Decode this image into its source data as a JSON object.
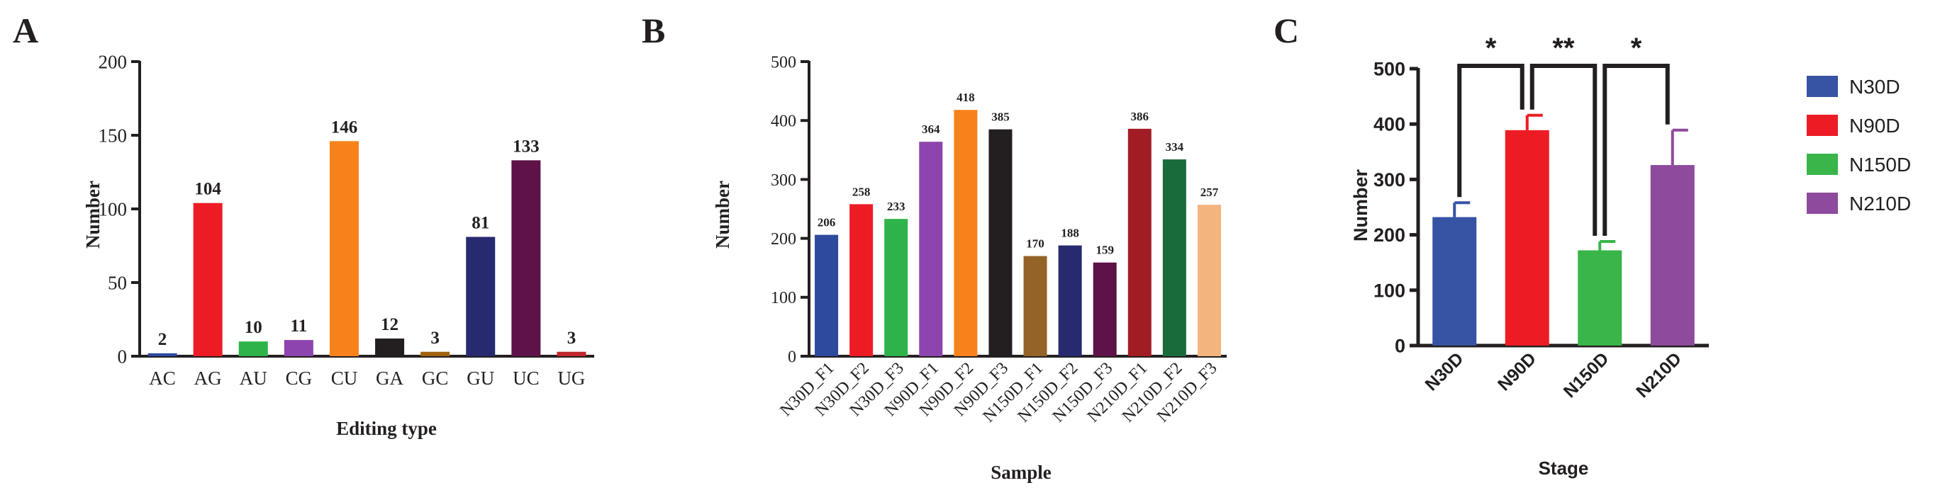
{
  "chart_data": [
    {
      "panel": "A",
      "type": "bar",
      "xlabel": "Editing type",
      "ylabel": "Number",
      "ylim": [
        0,
        200
      ],
      "yticks": [
        "0",
        "50",
        "100",
        "150",
        "200"
      ],
      "categories": [
        "AC",
        "AG",
        "AU",
        "CG",
        "CU",
        "GA",
        "GC",
        "GU",
        "UC",
        "UG"
      ],
      "values": [
        2,
        104,
        10,
        11,
        146,
        12,
        3,
        81,
        133,
        3
      ],
      "data_labels": [
        "2",
        "104",
        "10",
        "11",
        "146",
        "12",
        "3",
        "81",
        "133",
        "3"
      ],
      "colors": [
        "#2E4A9E",
        "#ED1C24",
        "#2DB34A",
        "#8E44AD",
        "#F7821B",
        "#231F20",
        "#A0620E",
        "#272A6E",
        "#5E1248",
        "#C1272D"
      ],
      "grid": false
    },
    {
      "panel": "B",
      "type": "bar",
      "xlabel": "Sample",
      "ylabel": "Number",
      "ylim": [
        0,
        500
      ],
      "yticks": [
        "0",
        "100",
        "200",
        "300",
        "400",
        "500"
      ],
      "categories": [
        "N30D_F1",
        "N30D_F2",
        "N30D_F3",
        "N90D_F1",
        "N90D_F2",
        "N90D_F3",
        "N150D_F1",
        "N150D_F2",
        "N150D_F3",
        "N210D_F1",
        "N210D_F2",
        "N210D_F3"
      ],
      "values": [
        206,
        258,
        233,
        364,
        418,
        385,
        170,
        188,
        159,
        386,
        334,
        257
      ],
      "data_labels": [
        "206",
        "258",
        "233",
        "364",
        "418",
        "385",
        "170",
        "188",
        "159",
        "386",
        "334",
        "257"
      ],
      "colors": [
        "#2E4A9E",
        "#ED1C24",
        "#2DB34A",
        "#8E44AD",
        "#F7821B",
        "#231F20",
        "#946327",
        "#272A6E",
        "#5E1248",
        "#A21D23",
        "#1A6B3C",
        "#F4B47E"
      ],
      "grid": false
    },
    {
      "panel": "C",
      "type": "bar",
      "xlabel": "Stage",
      "ylabel": "Number",
      "ylim": [
        0,
        500
      ],
      "yticks": [
        "0",
        "100",
        "200",
        "300",
        "400",
        "500"
      ],
      "categories": [
        "N30D",
        "N90D",
        "N150D",
        "N210D"
      ],
      "values": [
        232,
        389,
        172,
        326
      ],
      "error": [
        26,
        27,
        16,
        63
      ],
      "colors": [
        "#3753A4",
        "#ED1C24",
        "#39B54A",
        "#8E4A9D"
      ],
      "significance": [
        {
          "from": 0,
          "to": 1,
          "label": "*"
        },
        {
          "from": 1,
          "to": 2,
          "label": "**"
        },
        {
          "from": 2,
          "to": 3,
          "label": "*"
        }
      ],
      "legend": {
        "position": "right",
        "entries": [
          "N30D",
          "N90D",
          "N150D",
          "N210D"
        ]
      },
      "grid": false
    }
  ]
}
